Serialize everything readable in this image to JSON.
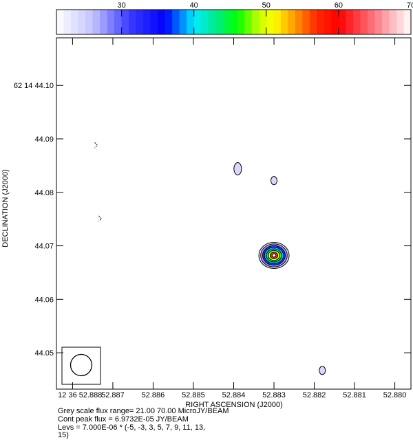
{
  "chart_data": {
    "type": "contour",
    "colorbar": {
      "ticks": [
        "30",
        "40",
        "50",
        "60",
        "70"
      ],
      "tick_values": [
        30,
        40,
        50,
        60,
        70
      ],
      "range": [
        21.0,
        70.0
      ]
    },
    "xlabel": "RIGHT ASCENSION (J2000)",
    "ylabel": "DECLINATION (J2000)",
    "x_ticks": [
      {
        "value": 52.888,
        "label": "12 36 52.888"
      },
      {
        "value": 52.887,
        "label": "52.887"
      },
      {
        "value": 52.886,
        "label": "52.886"
      },
      {
        "value": 52.885,
        "label": "52.885"
      },
      {
        "value": 52.884,
        "label": "52.884"
      },
      {
        "value": 52.883,
        "label": "52.883"
      },
      {
        "value": 52.882,
        "label": "52.882"
      },
      {
        "value": 52.881,
        "label": "52.881"
      },
      {
        "value": 52.88,
        "label": "52.880"
      }
    ],
    "y_ticks": [
      {
        "value": 44.1,
        "label": "62 14 44.10"
      },
      {
        "value": 44.09,
        "label": "44.09"
      },
      {
        "value": 44.08,
        "label": "44.08"
      },
      {
        "value": 44.07,
        "label": "44.07"
      },
      {
        "value": 44.06,
        "label": "44.06"
      },
      {
        "value": 44.05,
        "label": "44.05"
      }
    ],
    "xlim": [
      52.8884,
      52.8796
    ],
    "ylim": [
      44.0432,
      44.1089
    ],
    "sources": [
      {
        "ra": 52.883,
        "dec": 44.0682,
        "peak": 69.732,
        "levels": 8
      },
      {
        "ra": 52.8839,
        "dec": 44.0844,
        "peak": 25,
        "levels": 1
      },
      {
        "ra": 52.883,
        "dec": 44.0822,
        "peak": 25,
        "levels": 1
      },
      {
        "ra": 52.8818,
        "dec": 44.0467,
        "peak": 25,
        "levels": 1
      }
    ],
    "negative_marks": [
      {
        "ra": 52.8874,
        "dec": 44.0888
      },
      {
        "ra": 52.8873,
        "dec": 44.0751
      }
    ],
    "beam": {
      "position": "bottom-left"
    }
  },
  "caption": {
    "line1": "Grey scale flux range= 21.00 70.00 MicroJY/BEAM",
    "line2": "Cont peak flux =  6.9732E-05 JY/BEAM",
    "line3": "Levs = 7.000E-06 * (-5, -3, 3, 5, 7, 9, 11, 13,",
    "line4": "15)"
  }
}
